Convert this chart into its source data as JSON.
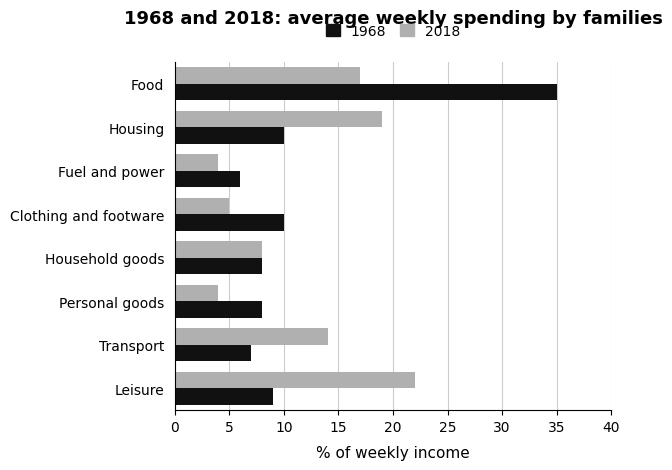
{
  "title": "1968 and 2018: average weekly spending by families",
  "categories": [
    "Food",
    "Housing",
    "Fuel and power",
    "Clothing and footware",
    "Household goods",
    "Personal goods",
    "Transport",
    "Leisure"
  ],
  "values_1968": [
    35,
    10,
    6,
    10,
    8,
    8,
    7,
    9
  ],
  "values_2018": [
    17,
    19,
    4,
    5,
    8,
    4,
    14,
    22
  ],
  "color_1968": "#111111",
  "color_2018": "#b0b0b0",
  "xlabel": "% of weekly income",
  "xlim": [
    0,
    40
  ],
  "xticks": [
    0,
    5,
    10,
    15,
    20,
    25,
    30,
    35,
    40
  ],
  "legend_labels": [
    "1968",
    "2018"
  ],
  "bar_height": 0.38,
  "grid_color": "#cccccc",
  "background_color": "#ffffff"
}
